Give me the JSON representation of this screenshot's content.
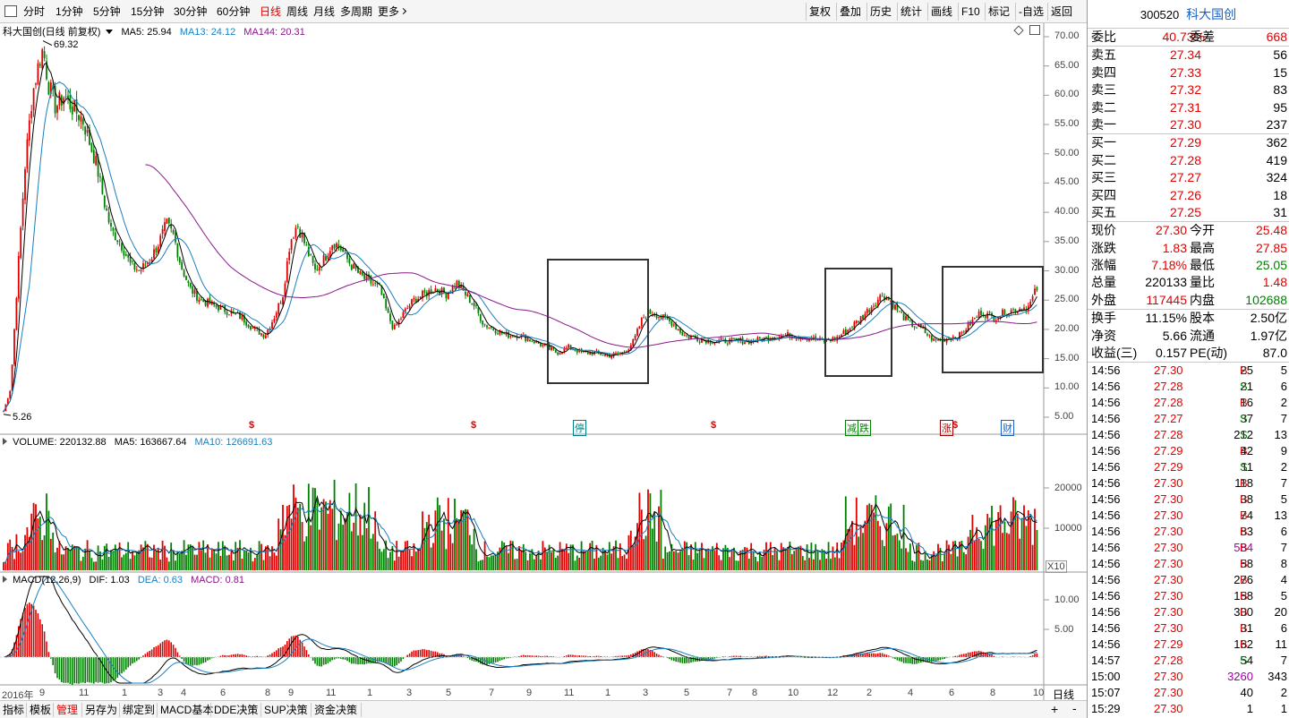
{
  "toolbar": {
    "left_items": [
      {
        "label": "分时",
        "active": false
      },
      {
        "label": "1分钟",
        "active": false
      },
      {
        "label": "5分钟",
        "active": false
      },
      {
        "label": "15分钟",
        "active": false
      },
      {
        "label": "30分钟",
        "active": false
      },
      {
        "label": "60分钟",
        "active": false
      },
      {
        "label": "日线",
        "active": true
      },
      {
        "label": "周线",
        "active": false
      },
      {
        "label": "月线",
        "active": false
      },
      {
        "label": "多周期",
        "active": false
      },
      {
        "label": "更多",
        "active": false
      }
    ],
    "right_items": [
      "复权",
      "叠加",
      "历史",
      "统计",
      "画线",
      "F10",
      "标记",
      "-自选",
      "返回"
    ]
  },
  "main_pane": {
    "title": "科大国创(日线 前复权)",
    "ma5_label": "MA5: 25.94",
    "ma13_label": "MA13: 24.12",
    "ma144_label": "MA144: 20.31",
    "high_label": "69.32",
    "low_label": "5.26",
    "y_ticks": [
      "70.00",
      "65.00",
      "60.00",
      "55.00",
      "50.00",
      "45.00",
      "40.00",
      "35.00",
      "30.00",
      "25.00",
      "20.00",
      "15.00",
      "10.00",
      "5.00"
    ],
    "markers": [
      {
        "label": "$",
        "color": "#e00000"
      },
      {
        "label": "$",
        "color": "#e00000"
      },
      {
        "label": "停",
        "color": "#008080"
      },
      {
        "label": "$",
        "color": "#e00000"
      },
      {
        "label": "减",
        "color": "#008000"
      },
      {
        "label": "跌",
        "color": "#008000"
      },
      {
        "label": "涨",
        "color": "#a00000"
      },
      {
        "label": "$",
        "color": "#e00000"
      },
      {
        "label": "财",
        "color": "#1a60c0"
      }
    ]
  },
  "volume_pane": {
    "title": "VOLUME: 220132.88",
    "ma5_label": "MA5: 163667.64",
    "ma10_label": "MA10: 126691.63",
    "y_ticks": [
      "20000",
      "10000"
    ],
    "unit": "X10"
  },
  "macd_pane": {
    "title": "MACD(12,26,9)",
    "dif_label": "DIF: 1.03",
    "dea_label": "DEA: 0.63",
    "macd_label": "MACD: 0.81",
    "y_ticks": [
      "10.00",
      "5.00"
    ]
  },
  "x_axis": {
    "year_label": "2016年",
    "months": [
      "9",
      "11",
      "1",
      "3",
      "4",
      "6",
      "8",
      "9",
      "11",
      "1",
      "3",
      "5",
      "7",
      "9",
      "11",
      "1",
      "3",
      "5",
      "7",
      "8",
      "10",
      "12",
      "2",
      "4",
      "6",
      "8",
      "10"
    ],
    "period": "日线"
  },
  "bottom_tabs": [
    "指标",
    "模板",
    "管理",
    "另存为",
    "绑定到",
    "MACD基本",
    "DDE决策",
    "SUP决策",
    "资金决策"
  ],
  "bottom_tabs_active": "管理",
  "quote": {
    "code": "300520",
    "name": "科大国创",
    "weibi_label": "委比",
    "weibi": "40.73%",
    "weicha_label": "委差",
    "weicha": "668",
    "sell": [
      {
        "label": "卖五",
        "price": "27.34",
        "vol": "56"
      },
      {
        "label": "卖四",
        "price": "27.33",
        "vol": "15"
      },
      {
        "label": "卖三",
        "price": "27.32",
        "vol": "83"
      },
      {
        "label": "卖二",
        "price": "27.31",
        "vol": "95"
      },
      {
        "label": "卖一",
        "price": "27.30",
        "vol": "237"
      }
    ],
    "buy": [
      {
        "label": "买一",
        "price": "27.29",
        "vol": "362"
      },
      {
        "label": "买二",
        "price": "27.28",
        "vol": "419"
      },
      {
        "label": "买三",
        "price": "27.27",
        "vol": "324"
      },
      {
        "label": "买四",
        "price": "27.26",
        "vol": "18"
      },
      {
        "label": "买五",
        "price": "27.25",
        "vol": "31"
      }
    ],
    "stats": [
      {
        "l1": "现价",
        "v1": "27.30",
        "c1": "red",
        "l2": "今开",
        "v2": "25.48",
        "c2": "red"
      },
      {
        "l1": "涨跌",
        "v1": "1.83",
        "c1": "red",
        "l2": "最高",
        "v2": "27.85",
        "c2": "red"
      },
      {
        "l1": "涨幅",
        "v1": "7.18%",
        "c1": "red",
        "l2": "最低",
        "v2": "25.05",
        "c2": "green"
      },
      {
        "l1": "总量",
        "v1": "220133",
        "c1": "black",
        "l2": "量比",
        "v2": "1.48",
        "c2": "red"
      },
      {
        "l1": "外盘",
        "v1": "117445",
        "c1": "red",
        "l2": "内盘",
        "v2": "102688",
        "c2": "green"
      }
    ],
    "stats2": [
      {
        "l1": "换手",
        "v1": "11.15%",
        "l2": "股本",
        "v2": "2.50亿"
      },
      {
        "l1": "净资",
        "v1": "5.66",
        "l2": "流通",
        "v2": "1.97亿"
      },
      {
        "l1": "收益(三)",
        "v1": "0.157",
        "l2": "PE(动)",
        "v2": "87.0"
      }
    ],
    "ticks": [
      {
        "t": "14:56",
        "p": "27.30",
        "pc": "red",
        "v": "25",
        "vc": "black",
        "s": "B",
        "n": "5"
      },
      {
        "t": "14:56",
        "p": "27.28",
        "pc": "red",
        "v": "21",
        "vc": "black",
        "s": "S",
        "n": "6"
      },
      {
        "t": "14:56",
        "p": "27.28",
        "pc": "red",
        "v": "16",
        "vc": "black",
        "s": "B",
        "n": "2"
      },
      {
        "t": "14:56",
        "p": "27.27",
        "pc": "red",
        "v": "37",
        "vc": "black",
        "s": "S",
        "n": "7"
      },
      {
        "t": "14:56",
        "p": "27.28",
        "pc": "red",
        "v": "212",
        "vc": "black",
        "s": "S",
        "n": "13"
      },
      {
        "t": "14:56",
        "p": "27.29",
        "pc": "red",
        "v": "42",
        "vc": "black",
        "s": "B",
        "n": "9"
      },
      {
        "t": "14:56",
        "p": "27.29",
        "pc": "red",
        "v": "11",
        "vc": "black",
        "s": "S",
        "n": "2"
      },
      {
        "t": "14:56",
        "p": "27.30",
        "pc": "red",
        "v": "118",
        "vc": "black",
        "s": "B",
        "n": "7"
      },
      {
        "t": "14:56",
        "p": "27.30",
        "pc": "red",
        "v": "38",
        "vc": "black",
        "s": "B",
        "n": "5"
      },
      {
        "t": "14:56",
        "p": "27.30",
        "pc": "red",
        "v": "74",
        "vc": "black",
        "s": "B",
        "n": "13"
      },
      {
        "t": "14:56",
        "p": "27.30",
        "pc": "red",
        "v": "83",
        "vc": "black",
        "s": "B",
        "n": "6"
      },
      {
        "t": "14:56",
        "p": "27.30",
        "pc": "red",
        "v": "584",
        "vc": "purple",
        "s": "B",
        "n": "7"
      },
      {
        "t": "14:56",
        "p": "27.30",
        "pc": "red",
        "v": "58",
        "vc": "black",
        "s": "B",
        "n": "8"
      },
      {
        "t": "14:56",
        "p": "27.30",
        "pc": "red",
        "v": "276",
        "vc": "black",
        "s": "B",
        "n": "4"
      },
      {
        "t": "14:56",
        "p": "27.30",
        "pc": "red",
        "v": "158",
        "vc": "black",
        "s": "B",
        "n": "5"
      },
      {
        "t": "14:56",
        "p": "27.30",
        "pc": "red",
        "v": "300",
        "vc": "black",
        "s": "B",
        "n": "20"
      },
      {
        "t": "14:56",
        "p": "27.30",
        "pc": "red",
        "v": "31",
        "vc": "black",
        "s": "B",
        "n": "6"
      },
      {
        "t": "14:56",
        "p": "27.29",
        "pc": "red",
        "v": "162",
        "vc": "black",
        "s": "B",
        "n": "11"
      },
      {
        "t": "14:57",
        "p": "27.28",
        "pc": "red",
        "v": "54",
        "vc": "black",
        "s": "S",
        "n": "7"
      },
      {
        "t": "15:00",
        "p": "27.30",
        "pc": "red",
        "v": "3260",
        "vc": "purple",
        "s": "",
        "n": "343"
      },
      {
        "t": "15:07",
        "p": "27.30",
        "pc": "red",
        "v": "40",
        "vc": "black",
        "s": "",
        "n": "2"
      },
      {
        "t": "15:29",
        "p": "27.30",
        "pc": "red",
        "v": "1",
        "vc": "black",
        "s": "",
        "n": "1"
      }
    ]
  },
  "colors": {
    "up": "#e00000",
    "down": "#008000",
    "ma5": "#000000",
    "ma13": "#1a7fc0",
    "ma144": "#8a168a"
  }
}
